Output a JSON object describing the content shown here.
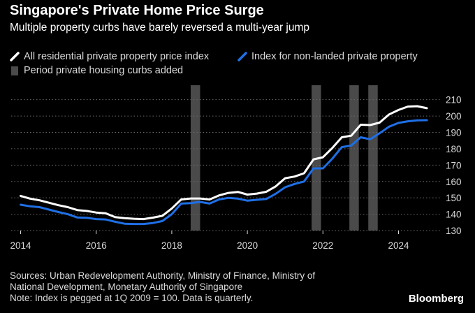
{
  "header": {
    "title": "Singapore's Private Home Price Surge",
    "subtitle": "Multiple property curbs have barely reversed a multi-year jump"
  },
  "legend": {
    "all_residential": "All residential private property price index",
    "non_landed": "Index for non-landed private property",
    "curbs": "Period private housing curbs added"
  },
  "footer": {
    "source_line1": "Sources: Urban Redevelopment Authority, Ministry of Finance, Ministry of",
    "source_line2": "National Development, Monetary Authority of Singapore",
    "note": "Note: Index is pegged at 1Q 2009 = 100. Data is quarterly.",
    "brand": "Bloomberg"
  },
  "colors": {
    "background": "#000000",
    "all_residential": "#ffffff",
    "non_landed": "#1f6fe5",
    "curb_band": "#4a4a4a",
    "grid": "#6b6b6b",
    "axis_text": "#d9d9d9"
  },
  "chart_data": {
    "type": "line",
    "title": "Singapore's Private Home Price Surge",
    "xlabel": "",
    "ylabel": "",
    "xlim": [
      2013.75,
      2025.1
    ],
    "ylim": [
      130,
      212
    ],
    "x_ticks": [
      2014,
      2016,
      2018,
      2020,
      2022,
      2024
    ],
    "x_tick_labels": [
      "2014",
      "2016",
      "2018",
      "2020",
      "2022",
      "2024"
    ],
    "y_ticks": [
      130,
      140,
      150,
      160,
      170,
      180,
      190,
      200,
      210
    ],
    "y_tick_labels": [
      "130",
      "140",
      "150",
      "160",
      "170",
      "180",
      "190",
      "200",
      "210"
    ],
    "grid": "horizontal-dotted",
    "legend_position": "top",
    "curb_periods": [
      {
        "start": 2018.5,
        "end": 2018.75
      },
      {
        "start": 2021.7,
        "end": 2021.95
      },
      {
        "start": 2022.7,
        "end": 2022.95
      },
      {
        "start": 2023.2,
        "end": 2023.45
      }
    ],
    "x": [
      2014.0,
      2014.25,
      2014.5,
      2014.75,
      2015.0,
      2015.25,
      2015.5,
      2015.75,
      2016.0,
      2016.25,
      2016.5,
      2016.75,
      2017.0,
      2017.25,
      2017.5,
      2017.75,
      2018.0,
      2018.25,
      2018.5,
      2018.75,
      2019.0,
      2019.25,
      2019.5,
      2019.75,
      2020.0,
      2020.25,
      2020.5,
      2020.75,
      2021.0,
      2021.25,
      2021.5,
      2021.75,
      2022.0,
      2022.25,
      2022.5,
      2022.75,
      2023.0,
      2023.25,
      2023.5,
      2023.75,
      2024.0,
      2024.25,
      2024.5,
      2024.75
    ],
    "series": [
      {
        "name": "All residential private property price index",
        "values": [
          151.2,
          149.5,
          148.5,
          147.0,
          145.5,
          144.3,
          142.5,
          142.0,
          141.0,
          140.6,
          138.2,
          137.6,
          137.2,
          137.0,
          137.9,
          139.0,
          143.5,
          149.0,
          149.6,
          149.6,
          149.0,
          151.5,
          153.0,
          153.6,
          152.0,
          152.6,
          153.7,
          157.0,
          162.0,
          163.0,
          165.0,
          173.5,
          174.8,
          180.5,
          187.0,
          188.0,
          194.7,
          194.5,
          196.0,
          201.0,
          203.7,
          205.8,
          206.0,
          204.8
        ]
      },
      {
        "name": "Index for non-landed private property",
        "values": [
          145.8,
          144.8,
          144.3,
          142.8,
          141.3,
          140.0,
          138.0,
          137.8,
          137.0,
          136.8,
          135.4,
          134.2,
          134.0,
          134.0,
          134.6,
          135.8,
          140.0,
          146.5,
          146.8,
          147.5,
          146.5,
          149.0,
          150.0,
          149.5,
          148.3,
          148.8,
          149.3,
          152.5,
          156.5,
          158.5,
          160.0,
          168.0,
          168.0,
          174.0,
          181.0,
          182.0,
          187.0,
          185.8,
          189.5,
          193.5,
          195.8,
          196.8,
          197.4,
          197.5
        ]
      }
    ]
  }
}
